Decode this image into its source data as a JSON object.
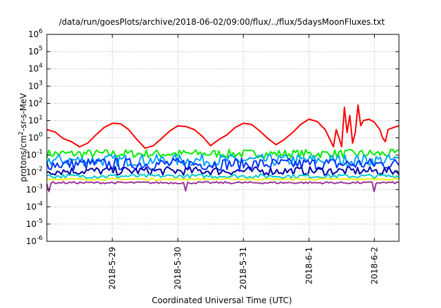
{
  "chart_data": {
    "type": "line",
    "title": "/data/run/goesPlots/archive/2018-06-02/09:00/flux/../flux/5daysMoonFluxes.txt",
    "xlabel": "Coordinated Universal Time (UTC)",
    "ylabel_parts": [
      "protons/cm",
      "2",
      "-sr-s-MeV"
    ],
    "yscale": "log",
    "ylim": [
      1e-06,
      1000000.0
    ],
    "y_ticks": [
      {
        "base": "10",
        "exp": "-6",
        "value": 1e-06
      },
      {
        "base": "10",
        "exp": "-5",
        "value": 1e-05
      },
      {
        "base": "10",
        "exp": "-4",
        "value": 0.0001
      },
      {
        "base": "10",
        "exp": "-3",
        "value": 0.001
      },
      {
        "base": "10",
        "exp": "-2",
        "value": 0.01
      },
      {
        "base": "10",
        "exp": "-1",
        "value": 0.1
      },
      {
        "base": "10",
        "exp": "0",
        "value": 1
      },
      {
        "base": "10",
        "exp": "1",
        "value": 10
      },
      {
        "base": "10",
        "exp": "2",
        "value": 100
      },
      {
        "base": "10",
        "exp": "3",
        "value": 1000
      },
      {
        "base": "10",
        "exp": "4",
        "value": 10000
      },
      {
        "base": "10",
        "exp": "5",
        "value": 100000
      },
      {
        "base": "10",
        "exp": "6",
        "value": 1000000
      }
    ],
    "xlim": [
      "2018-05-28T00:00",
      "2018-06-02T09:00"
    ],
    "x_ticks": [
      {
        "label": "2018-5-29",
        "value": "2018-05-29T00:00"
      },
      {
        "label": "2018-5-30",
        "value": "2018-05-30T00:00"
      },
      {
        "label": "2018-5-31",
        "value": "2018-05-31T00:00"
      },
      {
        "label": "2018-6-1",
        "value": "2018-06-01T00:00"
      },
      {
        "label": "2018-6-2",
        "value": "2018-06-02T00:00"
      }
    ],
    "grid": true,
    "legend": "none",
    "series": [
      {
        "color": "#ff0000",
        "points": [
          [
            "2018-05-28T00:00",
            3
          ],
          [
            "2018-05-28T03:00",
            2.2
          ],
          [
            "2018-05-28T06:00",
            0.9
          ],
          [
            "2018-05-28T09:00",
            0.6
          ],
          [
            "2018-05-28T12:00",
            0.3
          ],
          [
            "2018-05-28T15:00",
            0.5
          ],
          [
            "2018-05-28T18:00",
            1.5
          ],
          [
            "2018-05-28T21:00",
            4
          ],
          [
            "2018-05-29T00:00",
            7
          ],
          [
            "2018-05-29T03:00",
            6.5
          ],
          [
            "2018-05-29T06:00",
            3
          ],
          [
            "2018-05-29T09:00",
            0.8
          ],
          [
            "2018-05-29T12:00",
            0.25
          ],
          [
            "2018-05-29T15:00",
            0.35
          ],
          [
            "2018-05-29T18:00",
            0.9
          ],
          [
            "2018-05-29T21:00",
            2.5
          ],
          [
            "2018-05-30T00:00",
            5
          ],
          [
            "2018-05-30T03:00",
            4.5
          ],
          [
            "2018-05-30T06:00",
            3
          ],
          [
            "2018-05-30T09:00",
            1.2
          ],
          [
            "2018-05-30T12:00",
            0.35
          ],
          [
            "2018-05-30T15:00",
            0.8
          ],
          [
            "2018-05-30T18:00",
            1.5
          ],
          [
            "2018-05-30T21:00",
            4
          ],
          [
            "2018-05-31T00:00",
            7
          ],
          [
            "2018-05-31T03:00",
            6
          ],
          [
            "2018-05-31T06:00",
            2.5
          ],
          [
            "2018-05-31T09:00",
            0.9
          ],
          [
            "2018-05-31T12:00",
            0.4
          ],
          [
            "2018-05-31T15:00",
            0.8
          ],
          [
            "2018-05-31T18:00",
            2
          ],
          [
            "2018-05-31T21:00",
            6
          ],
          [
            "2018-06-01T00:00",
            12
          ],
          [
            "2018-06-01T03:00",
            9
          ],
          [
            "2018-06-01T06:00",
            3
          ],
          [
            "2018-06-01T09:00",
            0.3
          ],
          [
            "2018-06-01T10:00",
            3
          ],
          [
            "2018-06-01T11:00",
            1
          ],
          [
            "2018-06-01T12:00",
            0.3
          ],
          [
            "2018-06-01T13:00",
            60
          ],
          [
            "2018-06-01T14:00",
            2
          ],
          [
            "2018-06-01T15:00",
            20
          ],
          [
            "2018-06-01T16:00",
            0.5
          ],
          [
            "2018-06-01T17:00",
            2
          ],
          [
            "2018-06-01T18:00",
            80
          ],
          [
            "2018-06-01T19:00",
            5
          ],
          [
            "2018-06-01T20:00",
            10
          ],
          [
            "2018-06-01T22:00",
            12
          ],
          [
            "2018-06-02T00:00",
            8
          ],
          [
            "2018-06-02T02:00",
            3
          ],
          [
            "2018-06-02T03:00",
            1
          ],
          [
            "2018-06-02T04:00",
            0.6
          ],
          [
            "2018-06-02T05:00",
            3
          ],
          [
            "2018-06-02T07:00",
            4
          ],
          [
            "2018-06-02T09:00",
            5
          ]
        ]
      },
      {
        "color": "#00ee00",
        "points": [
          [
            "2018-05-28T00:00",
            0.12
          ],
          [
            "2018-06-02T09:00",
            0.12
          ]
        ],
        "noise": 0.25
      },
      {
        "color": "#00a0ff",
        "points": [
          [
            "2018-05-28T00:00",
            0.05
          ],
          [
            "2018-06-02T09:00",
            0.05
          ]
        ],
        "noise": 0.35
      },
      {
        "color": "#0033ff",
        "points": [
          [
            "2018-05-28T00:00",
            0.03
          ],
          [
            "2018-06-02T09:00",
            0.03
          ]
        ],
        "noise": 0.35
      },
      {
        "color": "#0000aa",
        "points": [
          [
            "2018-05-28T00:00",
            0.012
          ],
          [
            "2018-06-02T09:00",
            0.012
          ]
        ],
        "noise": 0.25
      },
      {
        "color": "#00cccc",
        "points": [
          [
            "2018-05-28T00:00",
            0.006
          ],
          [
            "2018-06-02T09:00",
            0.006
          ]
        ],
        "noise": 0.12
      },
      {
        "color": "#f0f000",
        "points": [
          [
            "2018-05-28T00:00",
            0.004
          ],
          [
            "2018-06-02T09:00",
            0.004
          ]
        ],
        "noise": 0.05
      },
      {
        "color": "#993399",
        "points": [
          [
            "2018-05-28T00:00",
            0.0025
          ],
          [
            "2018-06-02T09:00",
            0.0025
          ]
        ],
        "noise": 0.06,
        "dips": [
          "2018-05-28T01:00",
          "2018-05-30T03:00",
          "2018-06-02T00:00"
        ]
      }
    ]
  }
}
